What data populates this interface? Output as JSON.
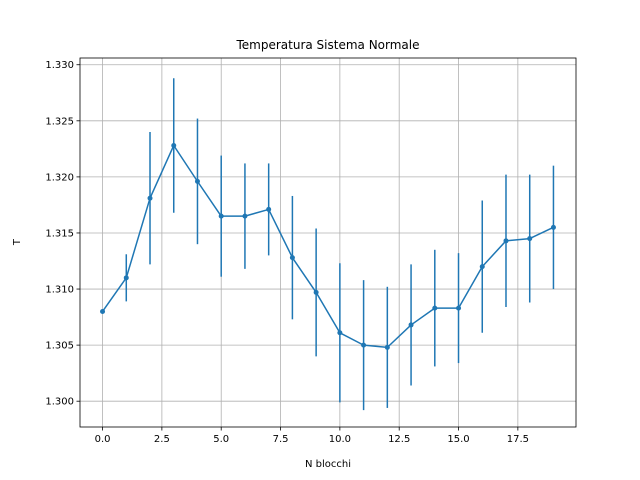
{
  "chart_data": {
    "type": "line",
    "title": "Temperatura Sistema Normale",
    "xlabel": "N blocchi",
    "ylabel": "T",
    "xlim": [
      -0.95,
      19.95
    ],
    "ylim": [
      1.2977,
      1.3306
    ],
    "grid": true,
    "xticks": [
      0,
      2.5,
      5,
      7.5,
      10,
      12.5,
      15,
      17.5
    ],
    "xtick_labels": [
      "0.0",
      "2.5",
      "5.0",
      "7.5",
      "10.0",
      "12.5",
      "15.0",
      "17.5"
    ],
    "yticks": [
      1.3,
      1.305,
      1.31,
      1.315,
      1.32,
      1.325,
      1.33
    ],
    "ytick_labels": [
      "1.300",
      "1.305",
      "1.310",
      "1.315",
      "1.320",
      "1.325",
      "1.330"
    ],
    "color": "#1f77b4",
    "series": [
      {
        "x": [
          0,
          1,
          2,
          3,
          4,
          5,
          6,
          7,
          8,
          9,
          10,
          11,
          12,
          13,
          14,
          15,
          16,
          17,
          18,
          19
        ],
        "values": [
          1.308,
          1.311,
          1.3181,
          1.3228,
          1.3196,
          1.3165,
          1.3165,
          1.3171,
          1.3128,
          1.3097,
          1.3061,
          1.305,
          1.3048,
          1.3068,
          1.3083,
          1.3083,
          1.312,
          1.3143,
          1.3145,
          1.3155
        ],
        "errors": [
          0.0,
          0.0021,
          0.0059,
          0.006,
          0.0056,
          0.0054,
          0.0047,
          0.0041,
          0.0055,
          0.0057,
          0.0062,
          0.0058,
          0.0054,
          0.0054,
          0.0052,
          0.0049,
          0.0059,
          0.0059,
          0.0057,
          0.0055
        ]
      }
    ]
  }
}
